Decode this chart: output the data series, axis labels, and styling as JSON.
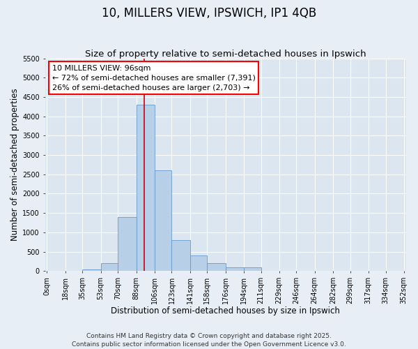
{
  "title": "10, MILLERS VIEW, IPSWICH, IP1 4QB",
  "subtitle": "Size of property relative to semi-detached houses in Ipswich",
  "xlabel": "Distribution of semi-detached houses by size in Ipswich",
  "ylabel": "Number of semi-detached properties",
  "footer_line1": "Contains HM Land Registry data © Crown copyright and database right 2025.",
  "footer_line2": "Contains public sector information licensed under the Open Government Licence v3.0.",
  "annotation_line1": "10 MILLERS VIEW: 96sqm",
  "annotation_line2": "← 72% of semi-detached houses are smaller (7,391)",
  "annotation_line3": "26% of semi-detached houses are larger (2,703) →",
  "bar_left_edges": [
    0,
    18,
    35,
    53,
    70,
    88,
    106,
    123,
    141,
    158,
    176,
    194,
    211,
    229,
    246,
    264,
    282,
    299,
    317,
    334
  ],
  "bar_widths": [
    18,
    17,
    18,
    17,
    18,
    18,
    17,
    18,
    17,
    18,
    18,
    17,
    18,
    17,
    18,
    18,
    17,
    18,
    17,
    18
  ],
  "bar_heights": [
    0,
    0,
    50,
    200,
    1400,
    4300,
    2600,
    800,
    400,
    200,
    100,
    100,
    0,
    0,
    0,
    0,
    0,
    0,
    0,
    0
  ],
  "bar_color": "#b8cfe8",
  "bar_edge_color": "#6699cc",
  "vline_color": "#cc0000",
  "vline_x": 96,
  "ylim": [
    0,
    5500
  ],
  "xlim": [
    -2,
    354
  ],
  "yticks": [
    0,
    500,
    1000,
    1500,
    2000,
    2500,
    3000,
    3500,
    4000,
    4500,
    5000,
    5500
  ],
  "xtick_positions": [
    0,
    18,
    35,
    53,
    70,
    88,
    106,
    123,
    141,
    158,
    176,
    194,
    211,
    229,
    246,
    264,
    282,
    299,
    317,
    334,
    352
  ],
  "xtick_labels": [
    "0sqm",
    "18sqm",
    "35sqm",
    "53sqm",
    "70sqm",
    "88sqm",
    "106sqm",
    "123sqm",
    "141sqm",
    "158sqm",
    "176sqm",
    "194sqm",
    "211sqm",
    "229sqm",
    "246sqm",
    "264sqm",
    "282sqm",
    "299sqm",
    "317sqm",
    "334sqm",
    "352sqm"
  ],
  "bg_color": "#e8eef5",
  "plot_bg_color": "#dce6f0",
  "grid_color": "#ffffff",
  "title_fontsize": 12,
  "subtitle_fontsize": 9.5,
  "label_fontsize": 8.5,
  "tick_fontsize": 7,
  "annotation_fontsize": 8,
  "footer_fontsize": 6.5
}
